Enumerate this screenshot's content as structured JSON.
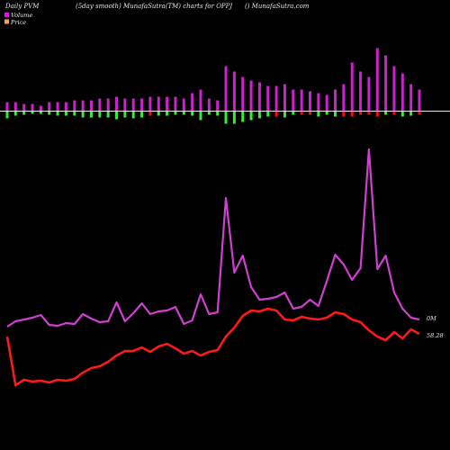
{
  "header": {
    "left": "Daily PVM",
    "center": "(5day smooth) MunafaSutra(TM) charts for OPPJ",
    "right": "() MunafaSutra.com"
  },
  "legend": [
    {
      "label": "Volume",
      "color": "#ff00ff"
    },
    {
      "label": "Price",
      "color": "#ff9966"
    }
  ],
  "colors": {
    "background": "#000000",
    "volume_line": "#d040d0",
    "price_line": "#ff1a1a",
    "bar_up": "#cc22cc",
    "bar_down_bottom": "#33ee33",
    "bar_red_bottom": "#ee1111",
    "baseline": "#e8e8e8"
  },
  "chart_data": {
    "type": "line",
    "end_labels": {
      "volume": "0M",
      "price": "58.28"
    },
    "series": [
      {
        "name": "Volume",
        "values": [
          363,
          357,
          355,
          353,
          350,
          361,
          362,
          359,
          360,
          349,
          354,
          358,
          357,
          336,
          357,
          348,
          337,
          349,
          346,
          345,
          341,
          360,
          356,
          327,
          349,
          347,
          220,
          303,
          284,
          319,
          333,
          332,
          330,
          325,
          343,
          341,
          333,
          340,
          312,
          283,
          294,
          311,
          298,
          166,
          299,
          284,
          325,
          343,
          353,
          355
        ]
      },
      {
        "name": "Price",
        "values": [
          374,
          428,
          422,
          424,
          423,
          425,
          422,
          423,
          421,
          414,
          409,
          407,
          402,
          395,
          390,
          390,
          386,
          391,
          385,
          382,
          387,
          393,
          390,
          395,
          391,
          389,
          374,
          364,
          351,
          345,
          346,
          343,
          345,
          355,
          356,
          352,
          354,
          355,
          353,
          347,
          349,
          355,
          358,
          367,
          374,
          378,
          369,
          376,
          366,
          371
        ]
      }
    ],
    "volume_bars": {
      "top": [
        10,
        10,
        8,
        8,
        6,
        10,
        10,
        10,
        12,
        12,
        12,
        14,
        14,
        16,
        14,
        14,
        14,
        16,
        16,
        16,
        16,
        14,
        20,
        24,
        14,
        12,
        50,
        44,
        38,
        34,
        32,
        28,
        28,
        30,
        24,
        24,
        22,
        20,
        18,
        24,
        30,
        54,
        44,
        38,
        70,
        62,
        50,
        42,
        30,
        24
      ],
      "bottom": [
        8,
        5,
        4,
        3,
        3,
        4,
        5,
        5,
        5,
        7,
        7,
        7,
        7,
        9,
        7,
        8,
        7,
        5,
        5,
        5,
        4,
        4,
        5,
        10,
        4,
        5,
        14,
        14,
        12,
        10,
        8,
        6,
        6,
        7,
        4,
        4,
        4,
        6,
        4,
        6,
        6,
        6,
        4,
        4,
        6,
        4,
        4,
        6,
        5,
        4
      ],
      "bottom_color": [
        "g",
        "g",
        "g",
        "g",
        "g",
        "g",
        "g",
        "g",
        "g",
        "g",
        "g",
        "g",
        "g",
        "g",
        "g",
        "g",
        "g",
        "r",
        "g",
        "g",
        "g",
        "g",
        "g",
        "g",
        "g",
        "g",
        "g",
        "g",
        "g",
        "g",
        "g",
        "g",
        "r",
        "g",
        "g",
        "r",
        "r",
        "g",
        "g",
        "g",
        "r",
        "r",
        "r",
        "r",
        "r",
        "g",
        "r",
        "g",
        "g",
        "r"
      ]
    }
  }
}
